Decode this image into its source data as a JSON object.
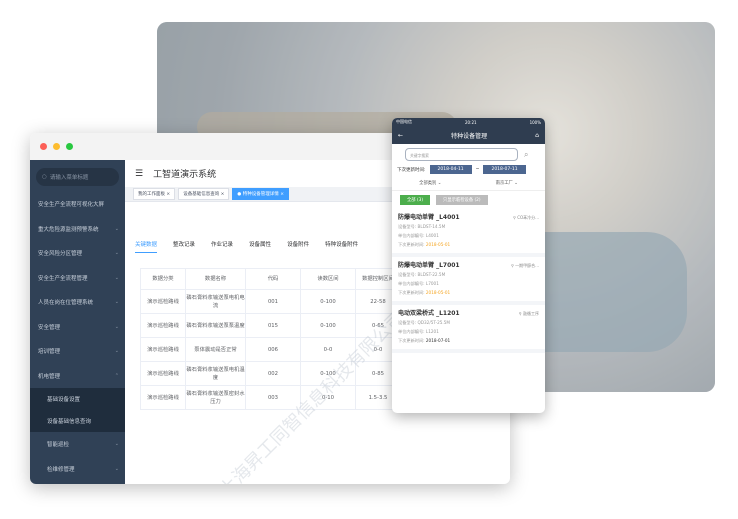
{
  "desktop": {
    "search_placeholder": "请输入菜单标题",
    "menu": [
      {
        "label": "安全生产全流程可视化大屏",
        "chevron": false
      },
      {
        "label": "重大危险源监测预警系统",
        "chevron": true
      },
      {
        "label": "安全风险分区管理",
        "chevron": true
      },
      {
        "label": "安全生产全流程管理",
        "chevron": true
      },
      {
        "label": "人员在岗在位管理系统",
        "chevron": true
      },
      {
        "label": "安全管理",
        "chevron": true
      },
      {
        "label": "培训管理",
        "chevron": true
      },
      {
        "label": "机电管理",
        "chevron": true
      }
    ],
    "submenu": [
      "基础设备设置",
      "设备基础信息查询"
    ],
    "submenu2": [
      "智能巡检",
      "检维修管理"
    ],
    "title": "工智道演示系统",
    "tags": [
      "我的工作面板",
      "设备基础信息查询",
      "特种设备管理详情"
    ],
    "tabs": [
      "关键数据",
      "整改记录",
      "作业记录",
      "设备属性",
      "设备附件",
      "特种设备附件"
    ],
    "table": {
      "headers": [
        "数据分类",
        "数据名称",
        "代码",
        "读数区间",
        "数据控制区间"
      ],
      "rows": [
        [
          "演示巡检路线",
          "磷石膏料浆输送泵电机电流",
          "001",
          "0-100",
          "22-58"
        ],
        [
          "演示巡检路线",
          "磷石膏料浆输送泵泵温度",
          "015",
          "0-100",
          "0-65"
        ],
        [
          "演示巡检路线",
          "泵体震动是否正常",
          "006",
          "0-0",
          "0-0"
        ],
        [
          "演示巡检路线",
          "磷石膏料浆输送泵电机温度",
          "002",
          "0-100",
          "0-85"
        ],
        [
          "演示巡检路线",
          "磷石膏料浆输送泵密封水压力",
          "003",
          "0-10",
          "1.5-3.5"
        ]
      ]
    },
    "watermark": "上海昇工同智信息科技有限公司"
  },
  "phone": {
    "carrier": "中国电信",
    "time": "20:21",
    "battery": "100%",
    "title": "特种设备管理",
    "search_placeholder": "关键字搜索",
    "date_label": "下次更新时间:",
    "date_from": "2018-04-11",
    "date_to": "2018-07-11",
    "filter_type": "全部类别",
    "filter_factory": "南京工厂",
    "btn_all": "全部 (3)",
    "btn_expiring": "只显示临检设备 (2)",
    "cards": [
      {
        "name": "防爆电动单臂 _L4001",
        "loc": "CO苯冷分...",
        "model": "设备型号: BLDST-14.5M",
        "code": "单位内部编号: L4001",
        "date_label": "下次更新时间:",
        "date": "2018-05-01",
        "warn": true
      },
      {
        "name": "防爆电动单臂 _L7001",
        "loc": "一期甲醇合...",
        "model": "设备型号: BLDST-22.5M",
        "code": "单位内部编号: L7001",
        "date_label": "下次更新时间:",
        "date": "2018-05-01",
        "warn": true
      },
      {
        "name": "电动双梁桥式 _L1201",
        "loc": "鼓循工序",
        "model": "设备型号: QD32/5T-25.5M",
        "code": "单位内部编号: L1201",
        "date_label": "下次更新时间:",
        "date": "2018-07-01",
        "warn": false
      }
    ]
  },
  "colors": {
    "sidebar": "#304156",
    "accent": "#409eff",
    "phone_header": "#2f3d50",
    "green": "#4cae4c",
    "orange": "#f5a623"
  }
}
